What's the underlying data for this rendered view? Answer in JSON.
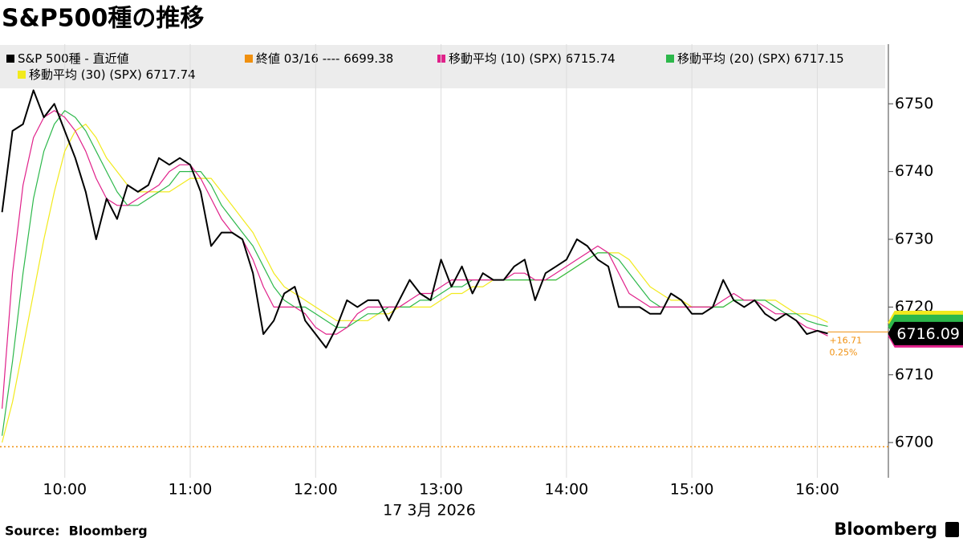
{
  "chart_data": {
    "type": "line",
    "title": "S&P500種の推移",
    "xlabel": "17 3月 2026",
    "source": "Source:  Bloomberg",
    "brand": "Bloomberg",
    "x": [
      "09:30",
      "09:35",
      "09:40",
      "09:45",
      "09:50",
      "09:55",
      "10:00",
      "10:05",
      "10:10",
      "10:15",
      "10:20",
      "10:25",
      "10:30",
      "10:35",
      "10:40",
      "10:45",
      "10:50",
      "10:55",
      "11:00",
      "11:05",
      "11:10",
      "11:15",
      "11:20",
      "11:25",
      "11:30",
      "11:35",
      "11:40",
      "11:45",
      "11:50",
      "11:55",
      "12:00",
      "12:05",
      "12:10",
      "12:15",
      "12:20",
      "12:25",
      "12:30",
      "12:35",
      "12:40",
      "12:45",
      "12:50",
      "12:55",
      "13:00",
      "13:05",
      "13:10",
      "13:15",
      "13:20",
      "13:25",
      "13:30",
      "13:35",
      "13:40",
      "13:45",
      "13:50",
      "13:55",
      "14:00",
      "14:05",
      "14:10",
      "14:15",
      "14:20",
      "14:25",
      "14:30",
      "14:35",
      "14:40",
      "14:45",
      "14:50",
      "14:55",
      "15:00",
      "15:05",
      "15:10",
      "15:15",
      "15:20",
      "15:25",
      "15:30",
      "15:35",
      "15:40",
      "15:45",
      "15:50",
      "15:55",
      "16:00",
      "16:05"
    ],
    "series": [
      {
        "name": "S&P 500種 - 直近値",
        "color": "#000000",
        "width": 2,
        "values": [
          6734,
          6746,
          6747,
          6752,
          6748,
          6750,
          6746,
          6742,
          6737,
          6730,
          6736,
          6733,
          6738,
          6737,
          6738,
          6742,
          6741,
          6742,
          6741,
          6737,
          6729,
          6731,
          6731,
          6730,
          6725,
          6716,
          6718,
          6722,
          6723,
          6718,
          6716,
          6714,
          6717,
          6721,
          6720,
          6721,
          6721,
          6718,
          6721,
          6724,
          6722,
          6721,
          6727,
          6723,
          6726,
          6722,
          6725,
          6724,
          6724,
          6726,
          6727,
          6721,
          6725,
          6726,
          6727,
          6730,
          6729,
          6727,
          6726,
          6720,
          6720,
          6720,
          6719,
          6719,
          6722,
          6721,
          6719,
          6719,
          6720,
          6724,
          6721,
          6720,
          6721,
          6719,
          6718,
          6719,
          6718,
          6716,
          6716.5,
          6716.09
        ]
      },
      {
        "name": "移動平均 (10) (SPX)",
        "color": "#e0218a",
        "width": 1.2,
        "values": [
          6705,
          6725,
          6738,
          6745,
          6748,
          6749,
          6748,
          6746,
          6743,
          6739,
          6736,
          6735,
          6735,
          6736,
          6737,
          6738,
          6740,
          6741,
          6741,
          6739,
          6736,
          6733,
          6731,
          6730,
          6727,
          6723,
          6720,
          6720,
          6720,
          6719,
          6717,
          6716,
          6716,
          6717,
          6719,
          6720,
          6720,
          6720,
          6720,
          6721,
          6722,
          6722,
          6723,
          6724,
          6724,
          6724,
          6724,
          6724,
          6724,
          6725,
          6725,
          6724,
          6724,
          6725,
          6726,
          6727,
          6728,
          6729,
          6728,
          6725,
          6722,
          6721,
          6720,
          6720,
          6720,
          6720,
          6720,
          6720,
          6720,
          6721,
          6722,
          6721,
          6721,
          6720,
          6719,
          6719,
          6718,
          6717,
          6716.5,
          6715.74
        ]
      },
      {
        "name": "移動平均 (20) (SPX)",
        "color": "#2db84b",
        "width": 1.2,
        "values": [
          6701,
          6712,
          6725,
          6736,
          6743,
          6747,
          6749,
          6748,
          6746,
          6743,
          6740,
          6737,
          6735,
          6735,
          6736,
          6737,
          6738,
          6740,
          6740,
          6740,
          6738,
          6735,
          6733,
          6731,
          6729,
          6726,
          6723,
          6721,
          6720,
          6720,
          6719,
          6718,
          6717,
          6717,
          6718,
          6719,
          6719,
          6720,
          6720,
          6720,
          6721,
          6721,
          6722,
          6723,
          6723,
          6724,
          6724,
          6724,
          6724,
          6724,
          6724,
          6724,
          6724,
          6724,
          6725,
          6726,
          6727,
          6728,
          6728,
          6727,
          6725,
          6723,
          6721,
          6720,
          6720,
          6720,
          6720,
          6720,
          6720,
          6720,
          6721,
          6721,
          6721,
          6721,
          6720,
          6719,
          6719,
          6718,
          6717.5,
          6717.15
        ]
      },
      {
        "name": "移動平均 (30) (SPX)",
        "color": "#f2ea1d",
        "width": 1.2,
        "values": [
          6700,
          6706,
          6714,
          6722,
          6730,
          6737,
          6743,
          6746,
          6747,
          6745,
          6742,
          6740,
          6738,
          6737,
          6737,
          6737,
          6737,
          6738,
          6739,
          6739,
          6739,
          6737,
          6735,
          6733,
          6731,
          6728,
          6725,
          6723,
          6722,
          6721,
          6720,
          6719,
          6718,
          6718,
          6718,
          6718,
          6719,
          6719,
          6720,
          6720,
          6720,
          6720,
          6721,
          6722,
          6722,
          6723,
          6723,
          6724,
          6724,
          6724,
          6724,
          6724,
          6724,
          6724,
          6725,
          6726,
          6727,
          6728,
          6728,
          6728,
          6727,
          6725,
          6723,
          6722,
          6721,
          6721,
          6720,
          6720,
          6720,
          6720,
          6721,
          6721,
          6721,
          6721,
          6721,
          6720,
          6719,
          6719,
          6718.5,
          6717.74
        ]
      }
    ],
    "close": {
      "name": "終値 03/16 ----",
      "value": 6699.38,
      "color": "#f0900f"
    },
    "annotations": [
      "+16.71",
      "0.25%"
    ],
    "xlim": [
      "09:29",
      "16:34"
    ],
    "xticks": [
      "10:00",
      "11:00",
      "12:00",
      "13:00",
      "14:00",
      "15:00",
      "16:00"
    ],
    "ylim": [
      6694.8,
      6758.8
    ],
    "yticks": [
      6700,
      6710,
      6720,
      6730,
      6740,
      6750
    ],
    "grid": true
  }
}
